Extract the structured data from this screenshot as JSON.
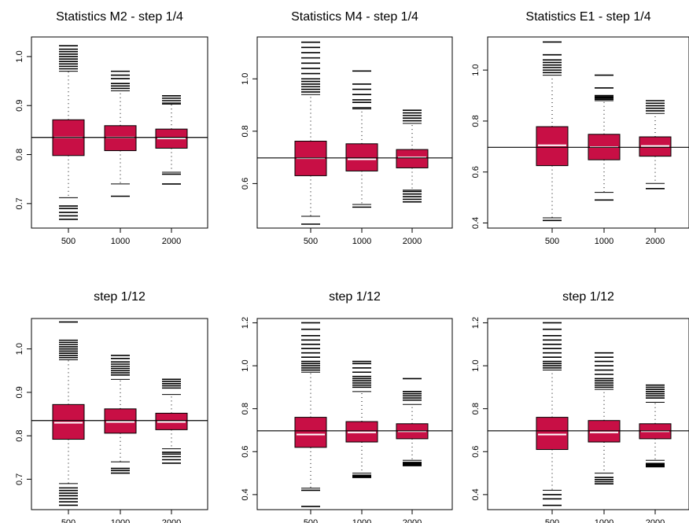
{
  "colors": {
    "box_fill": "#c80f45",
    "median": "#ffffff",
    "reference_line": "#000000",
    "outlier": "#000000"
  },
  "chart_data": [
    {
      "type": "boxplot",
      "title": "Statistics M2 - step 1/4",
      "categories": [
        "500",
        "1000",
        "2000"
      ],
      "ylim": [
        0.65,
        1.04
      ],
      "yticks": [
        0.7,
        0.8,
        0.9,
        1.0
      ],
      "ytick_labels": [
        "0.7",
        "0.8",
        "0.9",
        "1.0"
      ],
      "reference_line": 0.835,
      "boxes": [
        {
          "category": "500",
          "q1": 0.798,
          "median": 0.835,
          "q3": 0.871,
          "whisker_low": 0.712,
          "whisker_high": 0.97,
          "outliers": [
            0.668,
            0.675,
            0.682,
            0.69,
            0.695,
            0.975,
            0.98,
            0.985,
            0.99,
            0.995,
            1.0,
            1.005,
            1.01,
            1.015,
            1.022
          ]
        },
        {
          "category": "1000",
          "q1": 0.808,
          "median": 0.835,
          "q3": 0.859,
          "whisker_low": 0.74,
          "whisker_high": 0.93,
          "outliers": [
            0.715,
            0.935,
            0.94,
            0.945,
            0.955,
            0.962,
            0.97
          ]
        },
        {
          "category": "2000",
          "q1": 0.813,
          "median": 0.833,
          "q3": 0.852,
          "whisker_low": 0.764,
          "whisker_high": 0.903,
          "outliers": [
            0.74,
            0.76,
            0.905,
            0.91,
            0.915,
            0.92
          ]
        }
      ]
    },
    {
      "type": "boxplot",
      "title": "Statistics M4 - step 1/4",
      "categories": [
        "500",
        "1000",
        "2000"
      ],
      "ylim": [
        0.43,
        1.16
      ],
      "yticks": [
        0.6,
        0.8,
        1.0
      ],
      "ytick_labels": [
        "0.6",
        "0.8",
        "1.0"
      ],
      "reference_line": 0.698,
      "boxes": [
        {
          "category": "500",
          "q1": 0.63,
          "median": 0.697,
          "q3": 0.762,
          "whisker_low": 0.475,
          "whisker_high": 0.94,
          "outliers": [
            0.445,
            0.95,
            0.96,
            0.97,
            0.98,
            0.99,
            1.0,
            1.02,
            1.04,
            1.06,
            1.08,
            1.1,
            1.12,
            1.14
          ]
        },
        {
          "category": "1000",
          "q1": 0.648,
          "median": 0.693,
          "q3": 0.752,
          "whisker_low": 0.52,
          "whisker_high": 0.885,
          "outliers": [
            0.51,
            0.89,
            0.91,
            0.92,
            0.94,
            0.96,
            0.98,
            1.03
          ]
        },
        {
          "category": "2000",
          "q1": 0.66,
          "median": 0.7,
          "q3": 0.73,
          "whisker_low": 0.575,
          "whisker_high": 0.83,
          "outliers": [
            0.53,
            0.54,
            0.55,
            0.56,
            0.57,
            0.84,
            0.85,
            0.86,
            0.87,
            0.88
          ]
        }
      ]
    },
    {
      "type": "boxplot",
      "title": "Statistics E1 - step 1/4",
      "categories": [
        "500",
        "1000",
        "2000"
      ],
      "ylim": [
        0.38,
        1.13
      ],
      "yticks": [
        0.4,
        0.6,
        0.8,
        1.0
      ],
      "ytick_labels": [
        "0.4",
        "0.6",
        "0.8",
        "1.0"
      ],
      "reference_line": 0.697,
      "boxes": [
        {
          "category": "500",
          "q1": 0.625,
          "median": 0.705,
          "q3": 0.778,
          "whisker_low": 0.42,
          "whisker_high": 0.98,
          "outliers": [
            0.41,
            0.99,
            1.0,
            1.01,
            1.02,
            1.03,
            1.04,
            1.06,
            1.11
          ]
        },
        {
          "category": "1000",
          "q1": 0.648,
          "median": 0.698,
          "q3": 0.748,
          "whisker_low": 0.52,
          "whisker_high": 0.88,
          "outliers": [
            0.49,
            0.885,
            0.89,
            0.895,
            0.9,
            0.93,
            0.98
          ]
        },
        {
          "category": "2000",
          "q1": 0.662,
          "median": 0.702,
          "q3": 0.738,
          "whisker_low": 0.555,
          "whisker_high": 0.83,
          "outliers": [
            0.535,
            0.84,
            0.85,
            0.86,
            0.87,
            0.88
          ]
        }
      ]
    },
    {
      "type": "boxplot",
      "title": "step 1/12",
      "categories": [
        "500",
        "1000",
        "2000"
      ],
      "ylim": [
        0.63,
        1.07
      ],
      "yticks": [
        0.7,
        0.8,
        0.9,
        1.0
      ],
      "ytick_labels": [
        "0.7",
        "0.8",
        "0.9",
        "1.0"
      ],
      "reference_line": 0.835,
      "boxes": [
        {
          "category": "500",
          "q1": 0.792,
          "median": 0.83,
          "q3": 0.872,
          "whisker_low": 0.69,
          "whisker_high": 0.975,
          "outliers": [
            0.64,
            0.648,
            0.655,
            0.662,
            0.668,
            0.674,
            0.68,
            0.98,
            0.985,
            0.99,
            0.995,
            1.0,
            1.005,
            1.01,
            1.015,
            1.02,
            1.062
          ]
        },
        {
          "category": "1000",
          "q1": 0.806,
          "median": 0.832,
          "q3": 0.862,
          "whisker_low": 0.74,
          "whisker_high": 0.93,
          "outliers": [
            0.714,
            0.72,
            0.725,
            0.94,
            0.945,
            0.95,
            0.955,
            0.96,
            0.965,
            0.97,
            0.978,
            0.985
          ]
        },
        {
          "category": "2000",
          "q1": 0.814,
          "median": 0.832,
          "q3": 0.852,
          "whisker_low": 0.77,
          "whisker_high": 0.895,
          "outliers": [
            0.737,
            0.745,
            0.752,
            0.758,
            0.762,
            0.91,
            0.915,
            0.92,
            0.925,
            0.93
          ]
        }
      ]
    },
    {
      "type": "boxplot",
      "title": "step 1/12",
      "categories": [
        "500",
        "1000",
        "2000"
      ],
      "ylim": [
        0.33,
        1.22
      ],
      "yticks": [
        0.4,
        0.6,
        0.8,
        1.0,
        1.2
      ],
      "ytick_labels": [
        "0.4",
        "0.6",
        "0.8",
        "1.0",
        "1.2"
      ],
      "reference_line": 0.697,
      "boxes": [
        {
          "category": "500",
          "q1": 0.62,
          "median": 0.68,
          "q3": 0.76,
          "whisker_low": 0.43,
          "whisker_high": 0.97,
          "outliers": [
            0.345,
            0.42,
            0.98,
            0.99,
            1.0,
            1.01,
            1.02,
            1.04,
            1.06,
            1.08,
            1.1,
            1.12,
            1.14,
            1.17,
            1.2
          ]
        },
        {
          "category": "1000",
          "q1": 0.645,
          "median": 0.69,
          "q3": 0.74,
          "whisker_low": 0.5,
          "whisker_high": 0.88,
          "outliers": [
            0.48,
            0.485,
            0.49,
            0.9,
            0.91,
            0.92,
            0.93,
            0.94,
            0.95,
            0.97,
            0.99,
            1.01,
            1.02
          ]
        },
        {
          "category": "2000",
          "q1": 0.66,
          "median": 0.695,
          "q3": 0.73,
          "whisker_low": 0.56,
          "whisker_high": 0.82,
          "outliers": [
            0.535,
            0.54,
            0.545,
            0.55,
            0.84,
            0.85,
            0.86,
            0.87,
            0.88,
            0.94
          ]
        }
      ]
    },
    {
      "type": "boxplot",
      "title": "step 1/12",
      "categories": [
        "500",
        "1000",
        "2000"
      ],
      "ylim": [
        0.33,
        1.22
      ],
      "yticks": [
        0.4,
        0.6,
        0.8,
        1.0,
        1.2
      ],
      "ytick_labels": [
        "0.4",
        "0.6",
        "0.8",
        "1.0",
        "1.2"
      ],
      "reference_line": 0.697,
      "boxes": [
        {
          "category": "500",
          "q1": 0.61,
          "median": 0.68,
          "q3": 0.76,
          "whisker_low": 0.42,
          "whisker_high": 0.98,
          "outliers": [
            0.35,
            0.38,
            0.4,
            0.99,
            1.0,
            1.01,
            1.02,
            1.04,
            1.06,
            1.08,
            1.1,
            1.12,
            1.14,
            1.17,
            1.2
          ]
        },
        {
          "category": "1000",
          "q1": 0.645,
          "median": 0.69,
          "q3": 0.745,
          "whisker_low": 0.5,
          "whisker_high": 0.89,
          "outliers": [
            0.45,
            0.46,
            0.47,
            0.48,
            0.9,
            0.91,
            0.92,
            0.93,
            0.94,
            0.96,
            0.98,
            1.0,
            1.02,
            1.04,
            1.06
          ]
        },
        {
          "category": "2000",
          "q1": 0.66,
          "median": 0.695,
          "q3": 0.73,
          "whisker_low": 0.56,
          "whisker_high": 0.83,
          "outliers": [
            0.53,
            0.535,
            0.54,
            0.545,
            0.85,
            0.86,
            0.87,
            0.88,
            0.89,
            0.9,
            0.91
          ]
        }
      ]
    }
  ]
}
